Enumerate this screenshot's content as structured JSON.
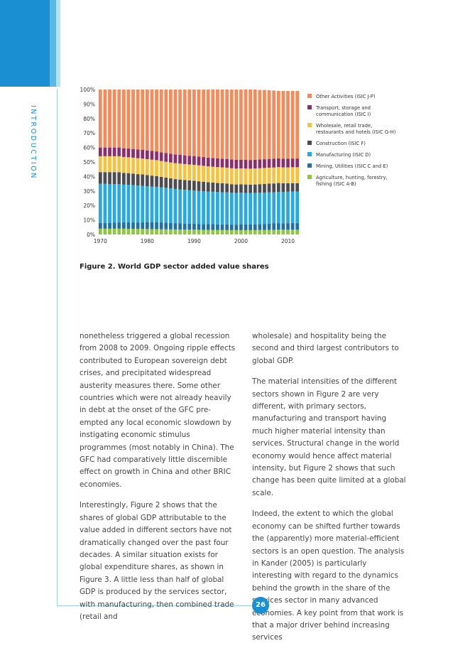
{
  "page": {
    "section_label": "INTRODUCTION",
    "page_number": "26",
    "figure_caption": "Figure 2. World GDP sector added value shares"
  },
  "chart_data": {
    "type": "bar",
    "stacked": true,
    "normalized": true,
    "title": "",
    "xlabel": "",
    "ylabel": "",
    "x_ticks": [
      "1970",
      "1980",
      "1990",
      "2000",
      "2010"
    ],
    "y_ticks": [
      "0%",
      "10%",
      "20%",
      "30%",
      "40%",
      "50%",
      "60%",
      "70%",
      "80%",
      "90%",
      "100%"
    ],
    "ylim": [
      0,
      100
    ],
    "years": [
      1970,
      1971,
      1972,
      1973,
      1974,
      1975,
      1976,
      1977,
      1978,
      1979,
      1980,
      1981,
      1982,
      1983,
      1984,
      1985,
      1986,
      1987,
      1988,
      1989,
      1990,
      1991,
      1992,
      1993,
      1994,
      1995,
      1996,
      1997,
      1998,
      1999,
      2000,
      2001,
      2002,
      2003,
      2004,
      2005,
      2006,
      2007,
      2008,
      2009,
      2010,
      2011,
      2012
    ],
    "legend_position": "right",
    "series": [
      {
        "name": "Agriculture, hunting, forestry, fishing (ISIC A-B)",
        "color": "#8dc63f",
        "values": [
          4.0,
          4.0,
          4.0,
          4.0,
          4.0,
          4.0,
          3.9,
          3.9,
          3.9,
          3.8,
          3.8,
          3.7,
          3.7,
          3.6,
          3.6,
          3.5,
          3.5,
          3.4,
          3.4,
          3.4,
          3.3,
          3.3,
          3.2,
          3.2,
          3.2,
          3.1,
          3.1,
          3.1,
          3.0,
          3.0,
          3.0,
          3.0,
          3.0,
          3.0,
          3.1,
          3.1,
          3.2,
          3.2,
          3.3,
          3.3,
          3.3,
          3.3,
          3.3
        ]
      },
      {
        "name": "Mining, Utilities (ISIC C and E)",
        "color": "#1f6fa8",
        "values": [
          4.0,
          4.0,
          4.0,
          4.1,
          4.3,
          4.4,
          4.4,
          4.4,
          4.4,
          4.5,
          4.7,
          4.8,
          4.8,
          4.7,
          4.6,
          4.5,
          4.3,
          4.2,
          4.1,
          4.1,
          4.1,
          4.0,
          4.0,
          3.9,
          3.9,
          3.9,
          3.9,
          3.9,
          3.8,
          3.8,
          3.9,
          3.9,
          3.9,
          4.0,
          4.1,
          4.2,
          4.3,
          4.4,
          4.5,
          4.4,
          4.5,
          4.6,
          4.6
        ]
      },
      {
        "name": "Manufacturing (ISIC D)",
        "color": "#27a9e1",
        "values": [
          27.0,
          27.0,
          26.8,
          26.6,
          26.5,
          26.0,
          26.0,
          25.8,
          25.5,
          25.3,
          24.8,
          24.5,
          24.4,
          24.2,
          24.0,
          23.8,
          23.6,
          23.5,
          23.3,
          23.0,
          22.9,
          22.7,
          22.6,
          22.5,
          22.4,
          22.3,
          22.2,
          22.1,
          22.0,
          21.9,
          21.9,
          21.8,
          21.7,
          21.7,
          21.6,
          21.6,
          21.6,
          21.5,
          21.5,
          21.6,
          21.7,
          21.7,
          21.7
        ]
      },
      {
        "name": "Construction (ISIC F)",
        "color": "#4d4d4f",
        "values": [
          8.0,
          8.0,
          8.2,
          8.3,
          8.2,
          8.1,
          8.0,
          7.9,
          7.8,
          7.8,
          7.7,
          7.6,
          7.4,
          7.2,
          7.0,
          6.9,
          6.8,
          6.8,
          6.8,
          6.8,
          6.8,
          6.7,
          6.6,
          6.4,
          6.3,
          6.2,
          6.1,
          6.0,
          5.9,
          5.8,
          5.8,
          5.8,
          5.8,
          5.8,
          5.9,
          6.0,
          6.0,
          6.1,
          6.2,
          6.0,
          5.8,
          5.8,
          5.8
        ]
      },
      {
        "name": "Wholesale, retail trade, restaurants and hotels (ISIC G-H)",
        "color": "#f7c23f",
        "values": [
          11.0,
          11.0,
          11.0,
          11.0,
          11.0,
          11.0,
          11.0,
          11.0,
          11.0,
          11.0,
          11.0,
          11.0,
          11.0,
          11.0,
          11.0,
          11.0,
          11.0,
          11.0,
          11.0,
          11.0,
          11.0,
          11.0,
          11.0,
          11.0,
          11.0,
          11.0,
          11.0,
          11.0,
          11.0,
          11.0,
          11.0,
          11.0,
          11.0,
          11.0,
          11.0,
          11.0,
          11.0,
          11.0,
          11.0,
          11.0,
          11.0,
          11.0,
          11.0
        ]
      },
      {
        "name": "Transport, storage and communication (ISIC I)",
        "color": "#8b2e6b",
        "values": [
          6.0,
          6.0,
          6.0,
          6.0,
          6.0,
          6.0,
          6.0,
          6.0,
          6.0,
          6.0,
          6.0,
          6.0,
          6.0,
          6.0,
          6.0,
          6.0,
          6.0,
          6.0,
          6.0,
          6.0,
          6.0,
          6.0,
          6.0,
          6.0,
          6.0,
          6.0,
          6.0,
          6.0,
          6.0,
          6.0,
          6.0,
          6.0,
          6.0,
          6.0,
          6.0,
          6.0,
          6.0,
          6.0,
          6.0,
          6.0,
          6.0,
          6.0,
          6.0
        ]
      },
      {
        "name": "Other Activities (ISIC J-P)",
        "color": "#f58b5b",
        "values": [
          40.0,
          40.0,
          40.0,
          40.0,
          40.0,
          40.5,
          40.7,
          41.0,
          41.4,
          41.6,
          42.0,
          42.4,
          42.7,
          43.3,
          43.8,
          44.3,
          44.8,
          45.1,
          45.4,
          45.7,
          45.9,
          46.3,
          46.6,
          47.0,
          47.2,
          47.5,
          47.7,
          47.9,
          48.3,
          48.5,
          48.4,
          48.5,
          48.6,
          48.5,
          48.0,
          47.8,
          47.4,
          47.1,
          46.5,
          46.7,
          46.7,
          46.6,
          46.6
        ]
      }
    ]
  },
  "text": {
    "left_paragraphs": [
      "nonetheless triggered a global recession from 2008 to 2009. Ongoing ripple effects contributed to European sovereign debt crises, and precipitated widespread austerity measures there. Some other countries which were not already heavily in debt at the onset of the GFC pre-empted any local economic slowdown by instigating economic stimulus programmes (most notably in China). The GFC had comparatively little discernible effect on growth in China and other BRIC economies.",
      "Interestingly, Figure 2 shows that the shares of global GDP attributable to the value added in different sectors have not dramatically changed over the past four decades. A similar situation exists for global expenditure shares, as shown in Figure 3. A little less than half of global GDP is produced by the services sector, with manufacturing, then combined trade (retail and"
    ],
    "right_paragraphs": [
      "wholesale) and hospitality being the second and third largest contributors to global GDP.",
      "The material intensities of the different sectors shown in Figure 2 are very different, with primary sectors, manufacturing and transport having much higher material intensity than services. Structural change in the world economy would hence affect material intensity, but Figure 2 shows that such change has been quite limited at a global scale.",
      "Indeed, the extent to which the global economy can be shifted further towards the (apparently) more material-efficient sectors is an open question. The analysis in Kander (2005) is particularly interesting with regard to the dynamics behind the growth in the share of the services sector in many advanced economies. A key point from that work is that a major driver behind increasing services"
    ]
  }
}
